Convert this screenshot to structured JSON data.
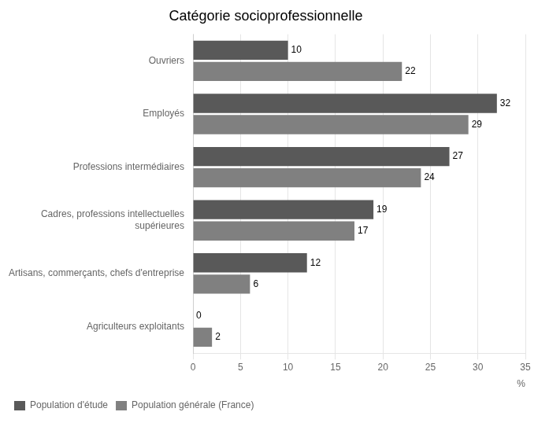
{
  "chart_data": {
    "type": "bar",
    "orientation": "horizontal",
    "title": "Catégorie socioprofessionnelle",
    "x_label": "%",
    "categories": [
      "Agriculteurs exploitants",
      "Artisans, commerçants, chefs d'entreprise",
      "Cadres, professions intellectuelles\nsupérieures",
      "Professions intermédiaires",
      "Employés",
      "Ouvriers"
    ],
    "series": [
      {
        "name": "Population d'étude",
        "color": "#595959",
        "values": [
          0,
          12,
          19,
          27,
          32,
          10
        ]
      },
      {
        "name": "Population générale (France)",
        "color": "#808080",
        "values": [
          2,
          6,
          17,
          24,
          29,
          22
        ]
      }
    ],
    "xlim": [
      0,
      35
    ],
    "xticks": [
      0,
      5,
      10,
      15,
      20,
      25,
      30,
      35
    ],
    "grid": true,
    "legend": "lower left",
    "data_labels": true
  }
}
